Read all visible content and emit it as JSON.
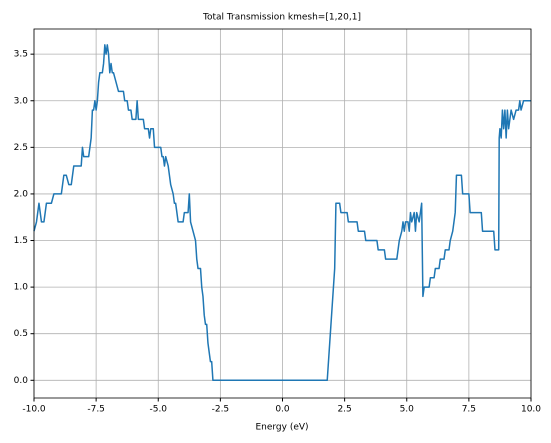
{
  "chart_data": {
    "type": "line",
    "title": "Total Transmission kmesh=[1,20,1]",
    "x_label": "Energy (eV)",
    "x": [
      -10,
      -9.9,
      -9.8,
      -9.7,
      -9.6,
      -9.5,
      -9.3,
      -9.2,
      -8.9,
      -8.8,
      -8.7,
      -8.6,
      -8.5,
      -8.4,
      -8.1,
      -8.05,
      -8.0,
      -7.8,
      -7.7,
      -7.65,
      -7.6,
      -7.55,
      -7.5,
      -7.45,
      -7.4,
      -7.35,
      -7.25,
      -7.2,
      -7.15,
      -7.1,
      -7.05,
      -7.0,
      -6.95,
      -6.9,
      -6.85,
      -6.8,
      -6.7,
      -6.6,
      -6.4,
      -6.35,
      -6.25,
      -6.2,
      -6.1,
      -6.05,
      -5.9,
      -5.85,
      -5.8,
      -5.6,
      -5.55,
      -5.4,
      -5.35,
      -5.3,
      -5.2,
      -5.15,
      -4.9,
      -4.85,
      -4.8,
      -4.75,
      -4.7,
      -4.6,
      -4.55,
      -4.5,
      -4.4,
      -4.35,
      -4.3,
      -4.2,
      -4.0,
      -3.95,
      -3.8,
      -3.75,
      -3.7,
      -3.6,
      -3.5,
      -3.45,
      -3.4,
      -3.3,
      -3.25,
      -3.2,
      -3.15,
      -3.1,
      -3.05,
      -3.0,
      -2.95,
      -2.9,
      -2.85,
      -2.8,
      1.8,
      1.9,
      2.0,
      2.1,
      2.15,
      2.3,
      2.35,
      2.6,
      2.65,
      3.0,
      3.05,
      3.3,
      3.35,
      3.8,
      3.85,
      4.1,
      4.15,
      4.6,
      4.7,
      4.8,
      4.85,
      4.9,
      4.95,
      5.05,
      5.1,
      5.15,
      5.2,
      5.3,
      5.35,
      5.4,
      5.5,
      5.6,
      5.65,
      5.7,
      5.9,
      5.95,
      6.1,
      6.15,
      6.3,
      6.35,
      6.5,
      6.55,
      6.7,
      6.75,
      6.85,
      6.9,
      6.95,
      7.0,
      7.2,
      7.25,
      7.5,
      7.55,
      8.0,
      8.05,
      8.5,
      8.55,
      8.7,
      8.72,
      8.75,
      8.8,
      8.85,
      8.9,
      8.95,
      9.0,
      9.05,
      9.1,
      9.2,
      9.3,
      9.4,
      9.5,
      9.55,
      9.6,
      9.7,
      10
    ],
    "series": [
      {
        "color": "#1f77b4",
        "values": [
          1.6,
          1.7,
          1.9,
          1.7,
          1.7,
          1.9,
          1.9,
          2.0,
          2.0,
          2.2,
          2.2,
          2.1,
          2.1,
          2.3,
          2.3,
          2.5,
          2.4,
          2.4,
          2.6,
          2.9,
          2.9,
          3.0,
          2.9,
          3.0,
          3.2,
          3.3,
          3.3,
          3.4,
          3.6,
          3.5,
          3.6,
          3.5,
          3.3,
          3.4,
          3.3,
          3.3,
          3.2,
          3.1,
          3.1,
          3.0,
          3.0,
          2.9,
          2.9,
          2.8,
          2.8,
          3.0,
          2.8,
          2.8,
          2.7,
          2.7,
          2.6,
          2.7,
          2.7,
          2.5,
          2.5,
          2.4,
          2.4,
          2.3,
          2.4,
          2.3,
          2.2,
          2.1,
          2.0,
          1.9,
          1.9,
          1.7,
          1.7,
          1.8,
          1.8,
          2.0,
          1.7,
          1.6,
          1.5,
          1.3,
          1.2,
          1.2,
          1.0,
          0.9,
          0.7,
          0.6,
          0.6,
          0.4,
          0.3,
          0.2,
          0.2,
          0,
          0,
          0.4,
          0.8,
          1.2,
          1.9,
          1.9,
          1.8,
          1.8,
          1.7,
          1.7,
          1.6,
          1.6,
          1.5,
          1.5,
          1.4,
          1.4,
          1.3,
          1.3,
          1.5,
          1.6,
          1.7,
          1.6,
          1.7,
          1.7,
          1.6,
          1.8,
          1.7,
          1.8,
          1.6,
          1.8,
          1.7,
          1.9,
          0.9,
          1.0,
          1.0,
          1.1,
          1.1,
          1.2,
          1.2,
          1.3,
          1.3,
          1.4,
          1.4,
          1.5,
          1.6,
          1.7,
          1.8,
          2.2,
          2.2,
          2.0,
          2.0,
          1.8,
          1.8,
          1.6,
          1.6,
          1.4,
          1.4,
          2.6,
          2.7,
          2.6,
          2.9,
          2.7,
          2.9,
          2.6,
          2.9,
          2.7,
          2.9,
          2.8,
          2.9,
          2.9,
          3.0,
          2.9,
          3.0,
          3.0
        ]
      }
    ],
    "xlim": [
      -10,
      10
    ],
    "xticks": [
      {
        "value": -10,
        "label": "-10.0"
      },
      {
        "value": -7.5,
        "label": "-7.5"
      },
      {
        "value": -5,
        "label": "-5.0"
      },
      {
        "value": -2.5,
        "label": "-2.5"
      },
      {
        "value": 0,
        "label": "0.0"
      },
      {
        "value": 2.5,
        "label": "2.5"
      },
      {
        "value": 5,
        "label": "5.0"
      },
      {
        "value": 7.5,
        "label": "7.5"
      },
      {
        "value": 10,
        "label": "10.0"
      }
    ],
    "ylim": [
      -0.19,
      3.77
    ],
    "yticks": [
      {
        "value": 0,
        "label": "0.0"
      },
      {
        "value": 0.5,
        "label": "0.5"
      },
      {
        "value": 1,
        "label": "1.0"
      },
      {
        "value": 1.5,
        "label": "1.5"
      },
      {
        "value": 2,
        "label": "2.0"
      },
      {
        "value": 2.5,
        "label": "2.5"
      },
      {
        "value": 3,
        "label": "3.0"
      },
      {
        "value": 3.5,
        "label": "3.5"
      }
    ],
    "grid": true
  }
}
